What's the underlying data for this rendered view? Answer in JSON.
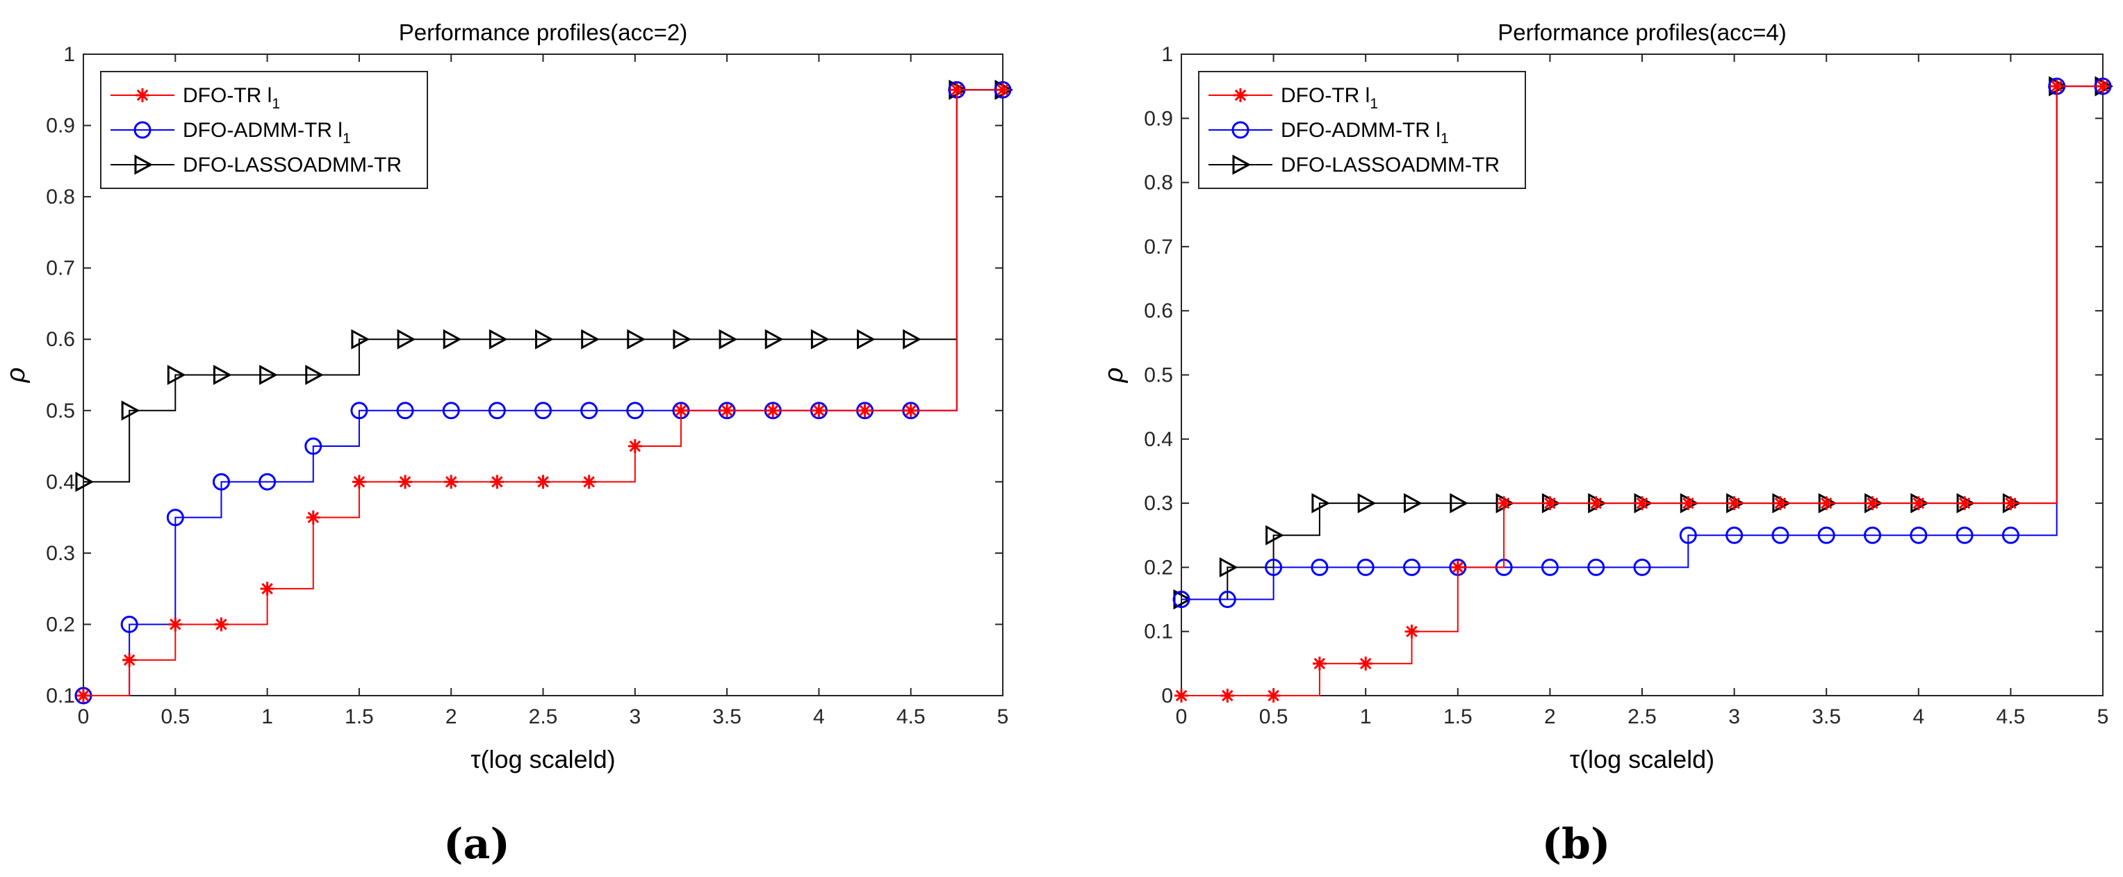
{
  "chart_data": [
    {
      "type": "line",
      "panel_label": "(a)",
      "title": "Performance profiles(acc=2)",
      "xlabel": "τ(log scaleld)",
      "ylabel": "ρ",
      "xlim": [
        0,
        5
      ],
      "ylim": [
        0.1,
        1
      ],
      "xticks": [
        0,
        0.5,
        1,
        1.5,
        2,
        2.5,
        3,
        3.5,
        4,
        4.5,
        5
      ],
      "xtick_labels": [
        "0",
        "0.5",
        "1",
        "1.5",
        "2",
        "2.5",
        "3",
        "3.5",
        "4",
        "4.5",
        "5"
      ],
      "yticks": [
        0.1,
        0.2,
        0.3,
        0.4,
        0.5,
        0.6,
        0.7,
        0.8,
        0.9,
        1
      ],
      "ytick_labels": [
        "0.1",
        "0.2",
        "0.3",
        "0.4",
        "0.5",
        "0.6",
        "0.7",
        "0.8",
        "0.9",
        "1"
      ],
      "legend_position": "top-left",
      "x": [
        0,
        0.25,
        0.5,
        0.75,
        1,
        1.25,
        1.5,
        1.75,
        2,
        2.25,
        2.5,
        2.75,
        3,
        3.25,
        3.5,
        3.75,
        4,
        4.25,
        4.5,
        4.75,
        5
      ],
      "series": [
        {
          "name": "DFO-TR l",
          "name_sub": "1",
          "color": "#ff0000",
          "marker": "asterisk",
          "values": [
            0.1,
            0.15,
            0.2,
            0.2,
            0.25,
            0.35,
            0.4,
            0.4,
            0.4,
            0.4,
            0.4,
            0.4,
            0.45,
            0.5,
            0.5,
            0.5,
            0.5,
            0.5,
            0.5,
            0.95,
            0.95
          ]
        },
        {
          "name": "DFO-ADMM-TR l",
          "name_sub": "1",
          "color": "#0000ff",
          "marker": "circle",
          "values": [
            0.1,
            0.2,
            0.35,
            0.4,
            0.4,
            0.45,
            0.5,
            0.5,
            0.5,
            0.5,
            0.5,
            0.5,
            0.5,
            0.5,
            0.5,
            0.5,
            0.5,
            0.5,
            0.5,
            0.95,
            0.95
          ]
        },
        {
          "name": "DFO-LASSOADMM-TR",
          "name_sub": "",
          "color": "#000000",
          "marker": "triangle-right",
          "values": [
            0.4,
            0.5,
            0.55,
            0.55,
            0.55,
            0.55,
            0.6,
            0.6,
            0.6,
            0.6,
            0.6,
            0.6,
            0.6,
            0.6,
            0.6,
            0.6,
            0.6,
            0.6,
            0.6,
            0.95,
            0.95
          ]
        }
      ]
    },
    {
      "type": "line",
      "panel_label": "(b)",
      "title": "Performance profiles(acc=4)",
      "xlabel": "τ(log scaleld)",
      "ylabel": "ρ",
      "xlim": [
        0,
        5
      ],
      "ylim": [
        0,
        1
      ],
      "xticks": [
        0,
        0.5,
        1,
        1.5,
        2,
        2.5,
        3,
        3.5,
        4,
        4.5,
        5
      ],
      "xtick_labels": [
        "0",
        "0.5",
        "1",
        "1.5",
        "2",
        "2.5",
        "3",
        "3.5",
        "4",
        "4.5",
        "5"
      ],
      "yticks": [
        0,
        0.1,
        0.2,
        0.3,
        0.4,
        0.5,
        0.6,
        0.7,
        0.8,
        0.9,
        1
      ],
      "ytick_labels": [
        "0",
        "0.1",
        "0.2",
        "0.3",
        "0.4",
        "0.5",
        "0.6",
        "0.7",
        "0.8",
        "0.9",
        "1"
      ],
      "legend_position": "top-left",
      "x": [
        0,
        0.25,
        0.5,
        0.75,
        1,
        1.25,
        1.5,
        1.75,
        2,
        2.25,
        2.5,
        2.75,
        3,
        3.25,
        3.5,
        3.75,
        4,
        4.25,
        4.5,
        4.75,
        5
      ],
      "series": [
        {
          "name": "DFO-TR l",
          "name_sub": "1",
          "color": "#ff0000",
          "marker": "asterisk",
          "values": [
            0,
            0,
            0,
            0.05,
            0.05,
            0.1,
            0.2,
            0.3,
            0.3,
            0.3,
            0.3,
            0.3,
            0.3,
            0.3,
            0.3,
            0.3,
            0.3,
            0.3,
            0.3,
            0.95,
            0.95
          ]
        },
        {
          "name": "DFO-ADMM-TR l",
          "name_sub": "1",
          "color": "#0000ff",
          "marker": "circle",
          "values": [
            0.15,
            0.15,
            0.2,
            0.2,
            0.2,
            0.2,
            0.2,
            0.2,
            0.2,
            0.2,
            0.2,
            0.25,
            0.25,
            0.25,
            0.25,
            0.25,
            0.25,
            0.25,
            0.25,
            0.95,
            0.95
          ]
        },
        {
          "name": "DFO-LASSOADMM-TR",
          "name_sub": "",
          "color": "#000000",
          "marker": "triangle-right",
          "values": [
            0.15,
            0.2,
            0.25,
            0.3,
            0.3,
            0.3,
            0.3,
            0.3,
            0.3,
            0.3,
            0.3,
            0.3,
            0.3,
            0.3,
            0.3,
            0.3,
            0.3,
            0.3,
            0.3,
            0.95,
            0.95
          ]
        }
      ]
    }
  ]
}
